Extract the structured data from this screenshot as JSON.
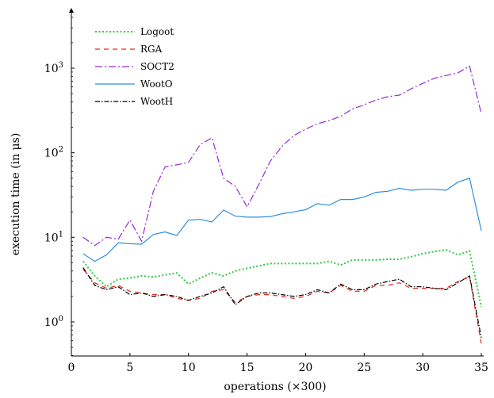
{
  "chart_data": {
    "type": "line",
    "xlabel": "operations (×300)",
    "ylabel": "execution time (in μs)",
    "y_scale": "log",
    "xlim": [
      0,
      35
    ],
    "ylim": [
      0.3,
      4000
    ],
    "x_ticks": [
      0,
      5,
      10,
      15,
      20,
      25,
      30,
      35
    ],
    "y_ticks": [
      {
        "value": 1,
        "base": "10",
        "exp": "0"
      },
      {
        "value": 10,
        "base": "10",
        "exp": "1"
      },
      {
        "value": 100,
        "base": "10",
        "exp": "2"
      },
      {
        "value": 1000,
        "base": "10",
        "exp": "3"
      }
    ],
    "legend_position": "top-left",
    "x": [
      1,
      2,
      3,
      4,
      5,
      6,
      7,
      8,
      9,
      10,
      11,
      12,
      13,
      14,
      15,
      16,
      17,
      18,
      19,
      20,
      21,
      22,
      23,
      24,
      25,
      26,
      27,
      28,
      29,
      30,
      31,
      32,
      33,
      34,
      35
    ],
    "series": [
      {
        "name": "Logoot",
        "color": "#2ecc40",
        "dash": "2,2.5",
        "width": 2,
        "values": [
          5.2,
          3.5,
          2.6,
          3.2,
          3.3,
          3.5,
          3.4,
          3.6,
          3.8,
          2.8,
          3.3,
          3.8,
          3.5,
          4.0,
          4.3,
          4.6,
          4.9,
          4.9,
          4.9,
          4.9,
          4.9,
          5.2,
          4.7,
          5.4,
          5.4,
          5.4,
          5.5,
          5.5,
          5.9,
          6.4,
          6.8,
          7.1,
          6.2,
          6.9,
          1.5
        ]
      },
      {
        "name": "RGA",
        "color": "#e8281a",
        "dash": "6,5",
        "width": 1.2,
        "values": [
          4.2,
          2.9,
          2.5,
          2.7,
          2.3,
          2.2,
          2.1,
          2.1,
          1.9,
          1.8,
          1.9,
          2.3,
          2.4,
          1.7,
          2.0,
          2.1,
          2.1,
          2.0,
          1.9,
          2.0,
          2.3,
          2.2,
          2.7,
          2.3,
          2.3,
          2.7,
          2.7,
          2.9,
          2.5,
          2.5,
          2.5,
          2.5,
          3.0,
          3.4,
          0.55
        ]
      },
      {
        "name": "SOCT2",
        "color": "#8e2bd9",
        "dash": "9,3,2,3",
        "width": 1.2,
        "values": [
          10,
          8,
          10,
          9.5,
          16,
          9,
          35,
          68,
          72,
          77,
          125,
          150,
          50,
          40,
          23,
          42,
          80,
          120,
          160,
          190,
          220,
          240,
          270,
          330,
          370,
          420,
          460,
          480,
          570,
          660,
          760,
          820,
          880,
          1060,
          290
        ]
      },
      {
        "name": "WootO",
        "color": "#2b8fe0",
        "dash": "",
        "width": 1.2,
        "values": [
          6.4,
          5.2,
          6.2,
          8.6,
          8.4,
          8.3,
          10.8,
          11.6,
          10.5,
          16,
          16.3,
          15.2,
          21,
          17.8,
          17.3,
          17.3,
          17.6,
          19,
          20,
          21.2,
          25,
          24,
          28,
          28,
          30,
          34,
          35,
          38,
          36,
          37,
          37,
          36,
          45,
          50,
          12
        ]
      },
      {
        "name": "WootH",
        "color": "#000000",
        "dash": "6,2,1.5,2",
        "width": 1.2,
        "values": [
          4.4,
          2.7,
          2.4,
          2.6,
          2.1,
          2.2,
          2.0,
          2.1,
          2.0,
          1.8,
          2.0,
          2.2,
          2.6,
          1.6,
          2.0,
          2.2,
          2.2,
          2.1,
          2.0,
          2.1,
          2.4,
          2.2,
          2.8,
          2.4,
          2.4,
          2.8,
          3.0,
          3.2,
          2.6,
          2.6,
          2.5,
          2.4,
          2.9,
          3.5,
          0.65
        ]
      }
    ]
  }
}
